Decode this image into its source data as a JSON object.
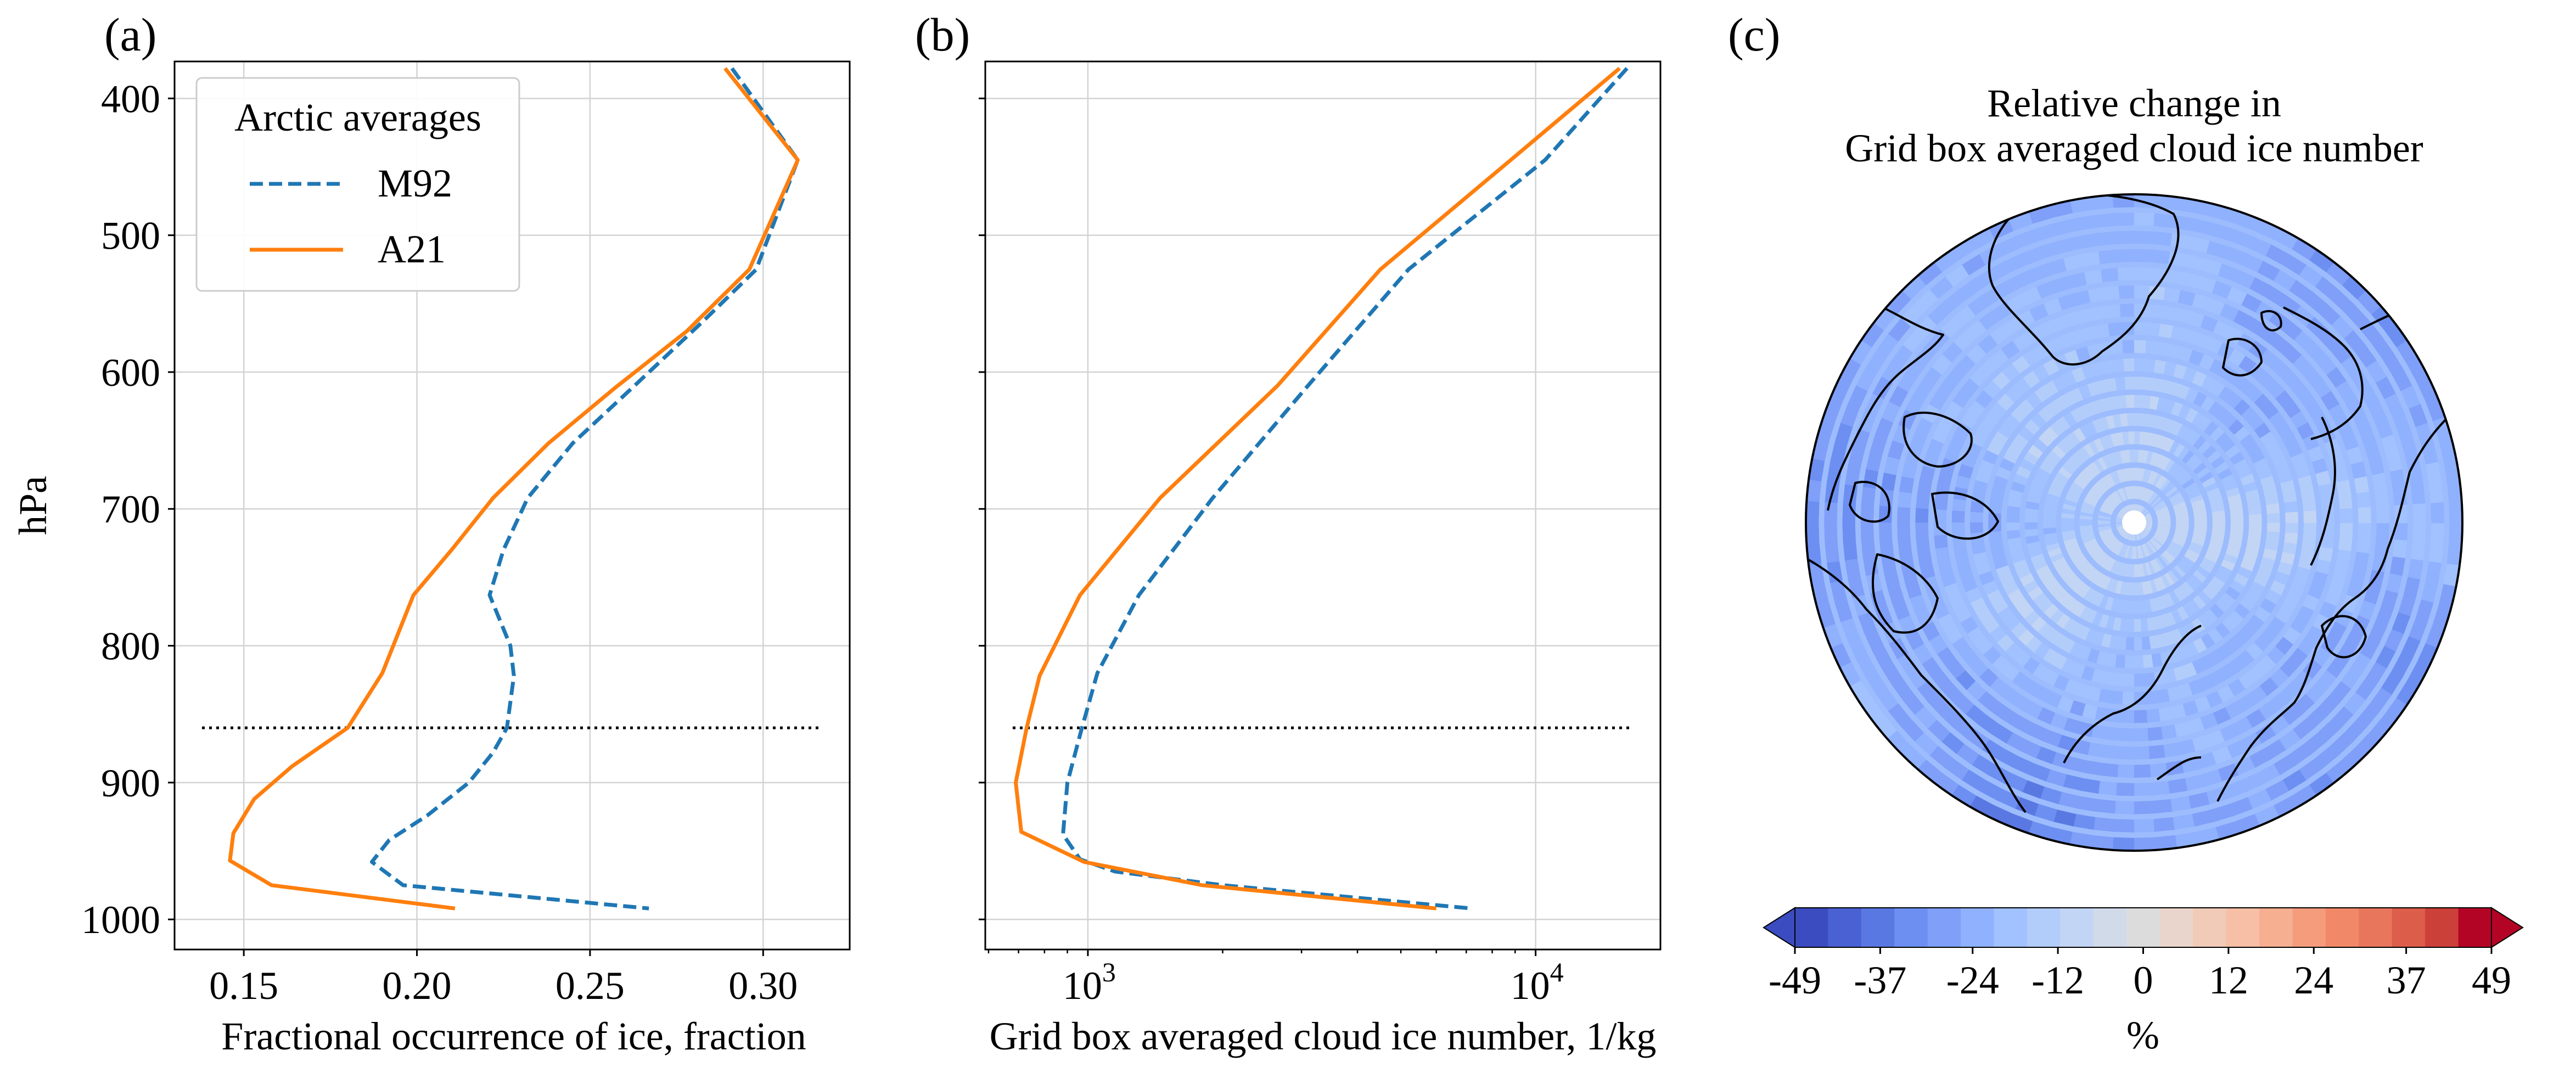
{
  "panels": {
    "a": {
      "letter": "(a)"
    },
    "b": {
      "letter": "(b)"
    },
    "c": {
      "letter": "(c)"
    }
  },
  "chart_data": [
    {
      "type": "line",
      "panel": "(a)",
      "xlabel": "Fractional occurrence of ice, fraction",
      "ylabel": "hPa",
      "xlim": [
        0.13,
        0.325
      ],
      "ylim": [
        1022,
        373
      ],
      "xticks": [
        0.15,
        0.2,
        0.25,
        0.3
      ],
      "xtick_labels": [
        "0.15",
        "0.20",
        "0.25",
        "0.30"
      ],
      "yticks": [
        400,
        500,
        600,
        700,
        800,
        900,
        1000
      ],
      "ytick_labels": [
        "400",
        "500",
        "600",
        "700",
        "800",
        "900",
        "1000"
      ],
      "grid": true,
      "legend": {
        "title": "Arctic averages",
        "location": "top-left"
      },
      "series": [
        {
          "name": "M92",
          "color": "#1f77b4",
          "dash": "dashed",
          "x": [
            0.291,
            0.31,
            0.298,
            0.283,
            0.262,
            0.245,
            0.232,
            0.225,
            0.221,
            0.227,
            0.228,
            0.226,
            0.222,
            0.215,
            0.203,
            0.192,
            0.187,
            0.196,
            0.267
          ],
          "y": [
            378,
            445,
            525,
            562,
            612,
            652,
            692,
            730,
            763,
            800,
            822,
            860,
            878,
            900,
            924,
            942,
            958,
            975,
            992
          ]
        },
        {
          "name": "A21",
          "color": "#ff7f0e",
          "dash": "solid",
          "x": [
            0.289,
            0.31,
            0.296,
            0.278,
            0.257,
            0.238,
            0.222,
            0.21,
            0.199,
            0.19,
            0.18,
            0.164,
            0.153,
            0.147,
            0.146,
            0.158,
            0.211
          ],
          "y": [
            378,
            445,
            525,
            570,
            612,
            652,
            692,
            730,
            763,
            820,
            860,
            888,
            912,
            937,
            957,
            975,
            992
          ]
        }
      ],
      "reference_line": {
        "pressure": 860,
        "style": "dotted",
        "color": "#000000"
      }
    },
    {
      "type": "line",
      "panel": "(b)",
      "xlabel": "Grid box averaged cloud ice number, 1/kg",
      "xscale": "log",
      "xlim": [
        590,
        19000
      ],
      "ylim": [
        1022,
        373
      ],
      "xticks": [
        1000,
        10000
      ],
      "xtick_labels": [
        "10",
        "10"
      ],
      "xtick_exponents": [
        "3",
        "4"
      ],
      "yticks": [
        400,
        500,
        600,
        700,
        800,
        900,
        1000
      ],
      "grid": true,
      "series": [
        {
          "name": "M92",
          "color": "#1f77b4",
          "dash": "dashed",
          "x": [
            16000,
            10500,
            5200,
            3100,
            1900,
            1300,
            1050,
            970,
            900,
            880,
            960,
            1150,
            2000,
            7200
          ],
          "y": [
            378,
            445,
            525,
            610,
            692,
            763,
            820,
            860,
            900,
            938,
            956,
            965,
            975,
            992
          ]
        },
        {
          "name": "A21",
          "color": "#ff7f0e",
          "dash": "solid",
          "x": [
            15400,
            8800,
            4500,
            2650,
            1450,
            960,
            780,
            730,
            690,
            710,
            980,
            1800,
            6000
          ],
          "y": [
            378,
            445,
            525,
            610,
            692,
            763,
            822,
            860,
            900,
            936,
            958,
            975,
            992
          ]
        }
      ],
      "reference_line": {
        "pressure": 860,
        "style": "dotted",
        "color": "#000000"
      }
    },
    {
      "type": "heatmap",
      "panel": "(c)",
      "projection": "north-polar-stereographic",
      "title_line1": "Relative change in",
      "title_line2": "Grid box averaged cloud ice number",
      "colorbar": {
        "cmap": "coolwarm",
        "ticks": [
          -49,
          -37,
          -24,
          -12,
          0,
          12,
          24,
          37,
          49
        ],
        "tick_labels": [
          "-49",
          "-37",
          "-24",
          "-12",
          "0",
          "12",
          "24",
          "37",
          "49"
        ],
        "label": "%",
        "extend": "both",
        "colors": [
          "#3b4cc0",
          "#4961d2",
          "#5a78e1",
          "#6c8ff1",
          "#7f9ff8",
          "#8fb1fe",
          "#a2c1ff",
          "#b3cdfb",
          "#c3d5f4",
          "#d1dae9",
          "#dddcdc",
          "#e9d5cb",
          "#f1cbb8",
          "#f6bfa6",
          "#f7af91",
          "#f59c7d",
          "#f18867",
          "#e8765c",
          "#dc5d4a",
          "#cc403a",
          "#b40426"
        ]
      },
      "relative_change_percent": {
        "median": -20,
        "range": [
          -41,
          -8
        ],
        "pattern": "near -10 around the pole, -20 to -30 at mid latitudes, -35 to -41 over Greenland, Hudson Bay and eastern Siberia"
      }
    }
  ]
}
